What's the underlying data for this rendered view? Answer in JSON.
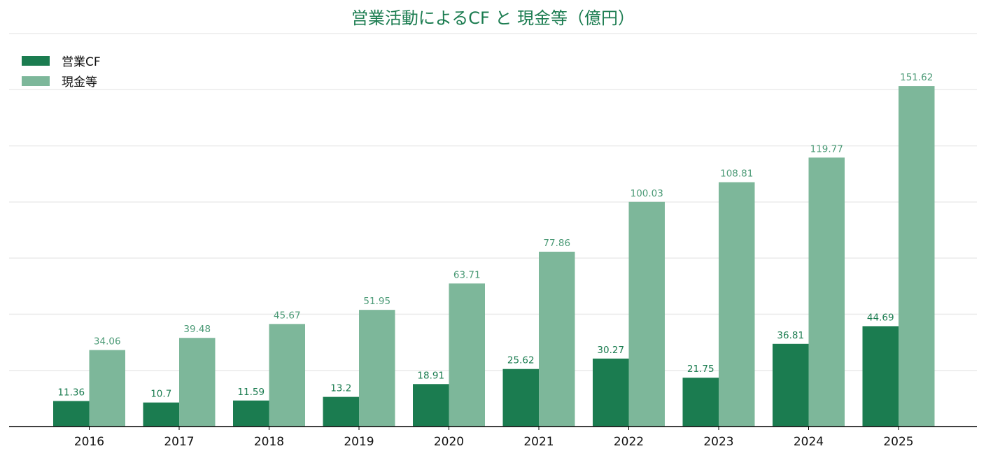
{
  "colors": {
    "primary": "#1b7c50",
    "secondary": "#7db79a",
    "axis": "#000000",
    "grid": "#ebebeb"
  },
  "chart_data": {
    "type": "bar",
    "title": "営業活動によるCF と 現金等（億円）",
    "xlabel": "",
    "ylabel": "",
    "categories": [
      "2016",
      "2017",
      "2018",
      "2019",
      "2020",
      "2021",
      "2022",
      "2023",
      "2024",
      "2025"
    ],
    "series": [
      {
        "name": "営業CF",
        "color": "#1b7c50",
        "label_color": "#1b7c50",
        "values": [
          11.36,
          10.7,
          11.59,
          13.2,
          18.91,
          25.62,
          30.27,
          21.75,
          36.81,
          44.69
        ]
      },
      {
        "name": "現金等",
        "color": "#7db79a",
        "label_color": "#4b9a76",
        "values": [
          34.06,
          39.48,
          45.67,
          51.95,
          63.71,
          77.86,
          100.03,
          108.81,
          119.77,
          151.62
        ]
      }
    ],
    "data_labels": [
      [
        "11.36",
        "10.7",
        "11.59",
        "13.2",
        "18.91",
        "25.62",
        "30.27",
        "21.75",
        "36.81",
        "44.69"
      ],
      [
        "34.06",
        "39.48",
        "45.67",
        "51.95",
        "63.71",
        "77.86",
        "100.03",
        "108.81",
        "119.77",
        "151.62"
      ]
    ],
    "ylim": [
      0,
      175
    ],
    "grid": "horizontal",
    "legend_position": "top-left"
  }
}
